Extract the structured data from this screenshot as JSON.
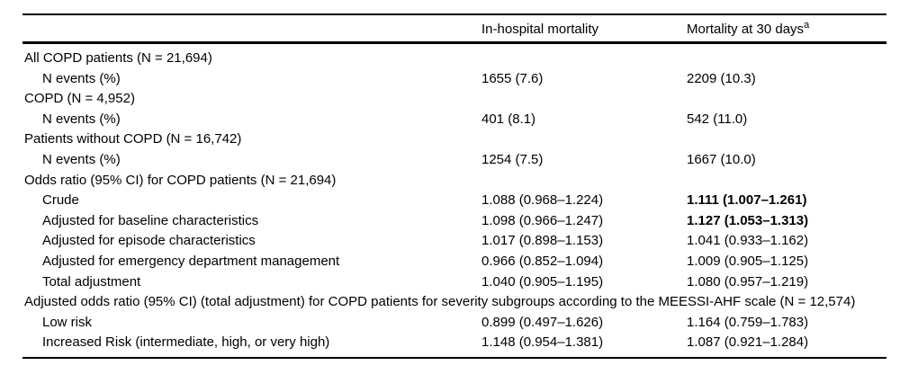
{
  "colors": {
    "background": "#ffffff",
    "text": "#000000",
    "rule": "#000000"
  },
  "table": {
    "header": {
      "col1": "",
      "col2": "In-hospital mortality",
      "col3": "Mortality at 30 days",
      "col3_superscript": "a"
    },
    "rows": [
      {
        "label": "All COPD patients (N = 21,694)",
        "indent": 0,
        "col2": "",
        "col3": "",
        "bold_col3": false,
        "span": false
      },
      {
        "label": "N events (%)",
        "indent": 1,
        "col2": "1655 (7.6)",
        "col3": "2209 (10.3)",
        "bold_col3": false,
        "span": false
      },
      {
        "label": "COPD (N = 4,952)",
        "indent": 0,
        "col2": "",
        "col3": "",
        "bold_col3": false,
        "span": false
      },
      {
        "label": "N events (%)",
        "indent": 1,
        "col2": "401 (8.1)",
        "col3": "542 (11.0)",
        "bold_col3": false,
        "span": false
      },
      {
        "label": "Patients without COPD (N = 16,742)",
        "indent": 0,
        "col2": "",
        "col3": "",
        "bold_col3": false,
        "span": false
      },
      {
        "label": "N events (%)",
        "indent": 1,
        "col2": "1254 (7.5)",
        "col3": "1667 (10.0)",
        "bold_col3": false,
        "span": false
      },
      {
        "label": "Odds ratio (95% CI) for COPD patients (N = 21,694)",
        "indent": 0,
        "col2": "",
        "col3": "",
        "bold_col3": false,
        "span": false
      },
      {
        "label": "Crude",
        "indent": 1,
        "col2": "1.088 (0.968–1.224)",
        "col3": "1.111 (1.007–1.261)",
        "bold_col3": true,
        "span": false
      },
      {
        "label": "Adjusted for baseline characteristics",
        "indent": 1,
        "col2": "1.098 (0.966–1.247)",
        "col3": "1.127 (1.053–1.313)",
        "bold_col3": true,
        "span": false
      },
      {
        "label": "Adjusted for episode characteristics",
        "indent": 1,
        "col2": "1.017 (0.898–1.153)",
        "col3": "1.041 (0.933–1.162)",
        "bold_col3": false,
        "span": false
      },
      {
        "label": "Adjusted for emergency department management",
        "indent": 1,
        "col2": "0.966 (0.852–1.094)",
        "col3": "1.009 (0.905–1.125)",
        "bold_col3": false,
        "span": false
      },
      {
        "label": "Total adjustment",
        "indent": 1,
        "col2": "1.040 (0.905–1.195)",
        "col3": "1.080 (0.957–1.219)",
        "bold_col3": false,
        "span": false
      },
      {
        "label": "Adjusted odds ratio (95% CI) (total adjustment) for COPD patients for severity subgroups according to the MEESSI-AHF scale (N = 12,574)",
        "indent": 0,
        "col2": "",
        "col3": "",
        "bold_col3": false,
        "span": true
      },
      {
        "label": "Low risk",
        "indent": 1,
        "col2": "0.899 (0.497–1.626)",
        "col3": "1.164 (0.759–1.783)",
        "bold_col3": false,
        "span": false
      },
      {
        "label": "Increased Risk (intermediate, high, or very high)",
        "indent": 1,
        "col2": "1.148 (0.954–1.381)",
        "col3": "1.087 (0.921–1.284)",
        "bold_col3": false,
        "span": false
      }
    ]
  }
}
